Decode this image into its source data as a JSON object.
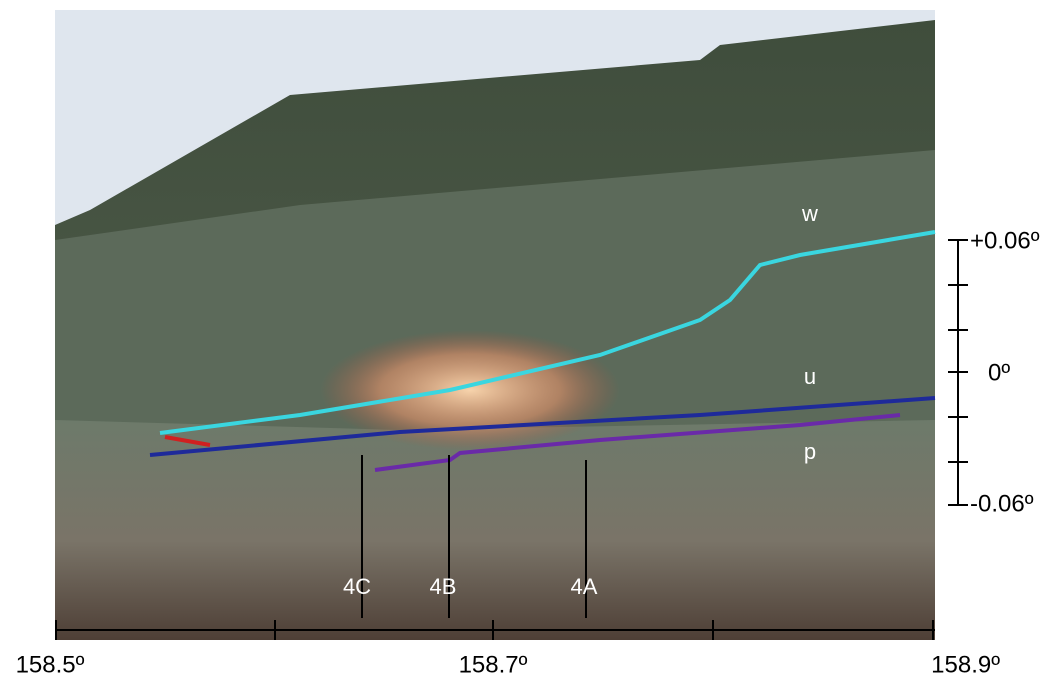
{
  "photo": {
    "layer_labels": [
      "w",
      "u",
      "p"
    ],
    "site_labels": [
      "4C",
      "4B",
      "4A"
    ]
  },
  "x_axis": {
    "tick_labels": [
      "158.5º",
      "158.7º",
      "158.9º"
    ]
  },
  "y_axis": {
    "tick_labels": [
      "+0.06º",
      "0º",
      "-0.06º"
    ]
  }
}
